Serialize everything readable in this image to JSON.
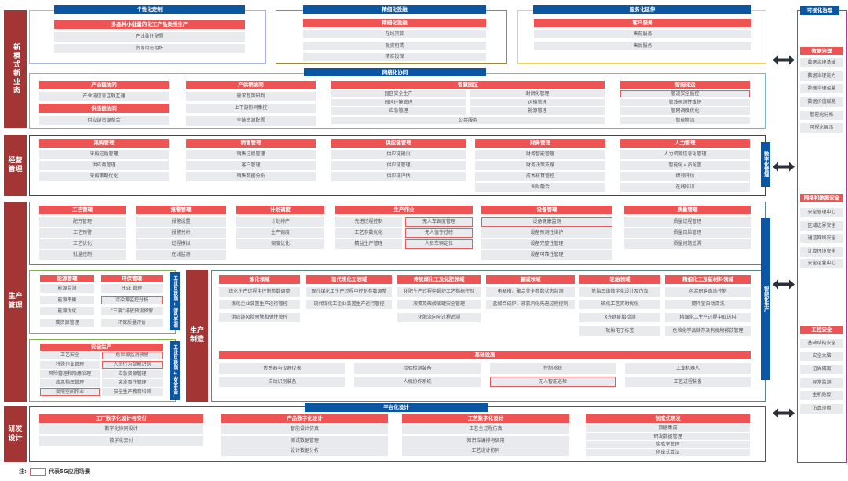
{
  "sections": {
    "new_model": "新模式新业态",
    "operation": "经营管理",
    "production": "生产管理",
    "manufacturing": "生产制造",
    "rnd": "研发设计"
  },
  "customization": {
    "title": "个性化定制",
    "card": {
      "title": "多品种小批量的化工产品柔性生产",
      "items": [
        "产线柔性配置",
        "资源动态组织"
      ]
    }
  },
  "finance": {
    "title": "精细化投融",
    "card": {
      "title": "精细化投融",
      "items": [
        "在线贷款",
        "融资租赁",
        "精准投保"
      ]
    }
  },
  "service": {
    "title": "服务化延伸",
    "card": {
      "title": "客户服务",
      "items": [
        "售前服务",
        "售后服务"
      ]
    }
  },
  "network": {
    "title": "网络化协同",
    "cards": [
      {
        "title": "产业链协同",
        "items": [
          "产业链信息互联互通"
        ]
      },
      {
        "title": "供应链协同",
        "items": [
          "供应链资源整合"
        ]
      },
      {
        "title": "产供销协同",
        "items": [
          "需求趋势研判",
          "上下游协同集控",
          "全链资源配置"
        ]
      },
      {
        "title": "智慧园区",
        "items": [
          "园区安全生产",
          "园区环境管理",
          "应急管理",
          "封闭化管理",
          "运输管理",
          "能源管理",
          "公共服务"
        ]
      },
      {
        "title": "智能储运",
        "items": [
          "管道安全监控",
          "管线预测性维护",
          "管网调度优化",
          "智能物流"
        ]
      }
    ]
  },
  "operation": {
    "tag": "数字化管理",
    "cards": [
      {
        "title": "采购管理",
        "items": [
          "采购过程管理",
          "供应商管理",
          "采购策略优化"
        ]
      },
      {
        "title": "销售管理",
        "items": [
          "销售过程管理",
          "客户管理",
          "销售数据分析"
        ]
      },
      {
        "title": "供应链管理",
        "items": [
          "供应链建设",
          "供应链管理",
          "供应链评估"
        ]
      },
      {
        "title": "财务管理",
        "items": [
          "财务智能管理",
          "财务决策支撑",
          "成本核算管控",
          "业财融合"
        ]
      },
      {
        "title": "人力管理",
        "items": [
          "人力资源信息化管理",
          "智能化人员配置",
          "绩效评估",
          "在线培训"
        ]
      }
    ]
  },
  "production": {
    "tag": "智能化生产",
    "cards": [
      {
        "title": "工艺管理",
        "items": [
          "配方管理",
          "工艺预警",
          "工艺优化",
          "批量控制"
        ]
      },
      {
        "title": "报警管理",
        "items": [
          "报警设置",
          "报警分析",
          "过程模拟",
          "在线监测"
        ]
      },
      {
        "title": "计划调度",
        "items": [
          "计划排产",
          "生产调度",
          "调度优化"
        ]
      },
      {
        "title": "生产作业",
        "items": [
          "先进过程控制",
          "工艺参数优化",
          "精益生产管理",
          "无人车调度管理",
          "无人值守过磅",
          "人员车辆定位"
        ]
      },
      {
        "title": "设备管理",
        "items": [
          "设备健康监测",
          "设备预测性维护",
          "设备完整性管理",
          "设备可靠性管理"
        ]
      },
      {
        "title": "质量管理",
        "items": [
          "质量过程管理",
          "质量风险管理",
          "质量问题追溯"
        ]
      }
    ]
  },
  "energy": {
    "tag": "工业互联网+绿色低碳",
    "cards": [
      {
        "title": "能源管理",
        "items": [
          "能源监测",
          "能源平衡",
          "能源优化",
          "碳资源管理"
        ]
      },
      {
        "title": "环保管理",
        "items": [
          "HSE 管理",
          "污染源监控分析",
          "“三废”排放预测预警",
          "环保质量评价"
        ]
      }
    ]
  },
  "safety": {
    "tag": "工业互联网+安全生产",
    "card": {
      "title": "安全生产",
      "items": [
        "工艺安全",
        "特殊作业管理",
        "风险管理和隐患治理",
        "应急指挥管理",
        "受限空间作业",
        "危险源监测预警",
        "人员行为智能识别",
        "应急资源管理",
        "突发事件管理",
        "安全生产教育培训"
      ]
    }
  },
  "manufacturing": {
    "domains": [
      {
        "title": "炼化领域",
        "items": [
          "炼化生产过程中控制参数调整",
          "炼化企业装置生产运行管控",
          "供应链风险预警和弹性管控"
        ]
      },
      {
        "title": "现代煤化工领域",
        "items": [
          "现代煤化工生产过程中控制参数调整",
          "现代煤化工企业装置生产运行管控"
        ]
      },
      {
        "title": "传统煤化工及化肥领域",
        "items": [
          "化肥生产过程中锅炉工艺指标控制",
          "液氨及硫酸储罐安全管理",
          "化肥流向全过程追溯"
        ]
      },
      {
        "title": "氯碱领域",
        "items": [
          "电解槽、聚合釜全参数状态监测",
          "盐酸合成炉、液氯汽化先进过程控制"
        ]
      },
      {
        "title": "轮胎领域",
        "items": [
          "轮胎三维数字化设计及仿真",
          "硫化工艺实时优化",
          "X光病疵胎检测",
          "轮胎电子标签"
        ]
      },
      {
        "title": "精细化工及新材料领域",
        "items": [
          "色浆研磨自动控制",
          "搅拌釜自动清洗",
          "精细化工生产过程中取送料",
          "危险化学品储存及有机物排放管理"
        ]
      }
    ],
    "infrastructure": {
      "title": "基础设施",
      "items": [
        "传感器与仪器仪表",
        "检验检测装备",
        "控制系统",
        "工业机器人",
        "自动识别装备",
        "人机协作系统",
        "无人智能巡检",
        "工艺过程装备"
      ]
    }
  },
  "rnd": {
    "title": "平台化设计",
    "cards": [
      {
        "title": "工厂数字化设计与交付",
        "items": [
          "数字化协同设计",
          "数字化交付"
        ]
      },
      {
        "title": "产品数字化设计",
        "items": [
          "智能设计仿真",
          "测试数据管理",
          "设计数据分析"
        ]
      },
      {
        "title": "工艺数字化设计",
        "items": [
          "工艺全过程仿真",
          "知识库编排与调用",
          "工艺设计协同"
        ]
      },
      {
        "title": "创成式研发",
        "items": [
          "数据集成",
          "研发数据管理",
          "实验室管理",
          "创成式算法"
        ]
      }
    ]
  },
  "governance": {
    "title": "可视化治理",
    "groups": [
      {
        "title": "数据治理",
        "items": [
          "数据治理基础",
          "数据治理能力",
          "数据治理运营",
          "数据价值赋能",
          "智能化分析",
          "可视化展示"
        ]
      },
      {
        "title": "网络和数据安全",
        "items": [
          "安全管理中心",
          "区域边界安全",
          "通信网络安全",
          "计算环境安全",
          "安全运营中心"
        ]
      },
      {
        "title": "工控安全",
        "items": [
          "基础结构安全",
          "安全大脑",
          "边界隔离",
          "异常监测",
          "主机免疫",
          "仿真沙盘"
        ]
      }
    ]
  },
  "five_g_scenarios": [
    "管道安全监控",
    "无人车调度管理",
    "无人值守过磅",
    "人员车辆定位",
    "设备健康监测",
    "污染源监控分析",
    "危险源监测预警",
    "人员行为智能识别",
    "受限空间作业",
    "无人智能巡检"
  ],
  "legend": {
    "note": "注:",
    "text": "代表5G应用场景"
  },
  "colors": {
    "section_label": "#a33535",
    "card_header": "#ef5454",
    "category_header": "#0b56a3",
    "item_bg": "#e8eaed",
    "fiveg_outline": "#ea5a5a",
    "governance_border": "#c2317f"
  }
}
